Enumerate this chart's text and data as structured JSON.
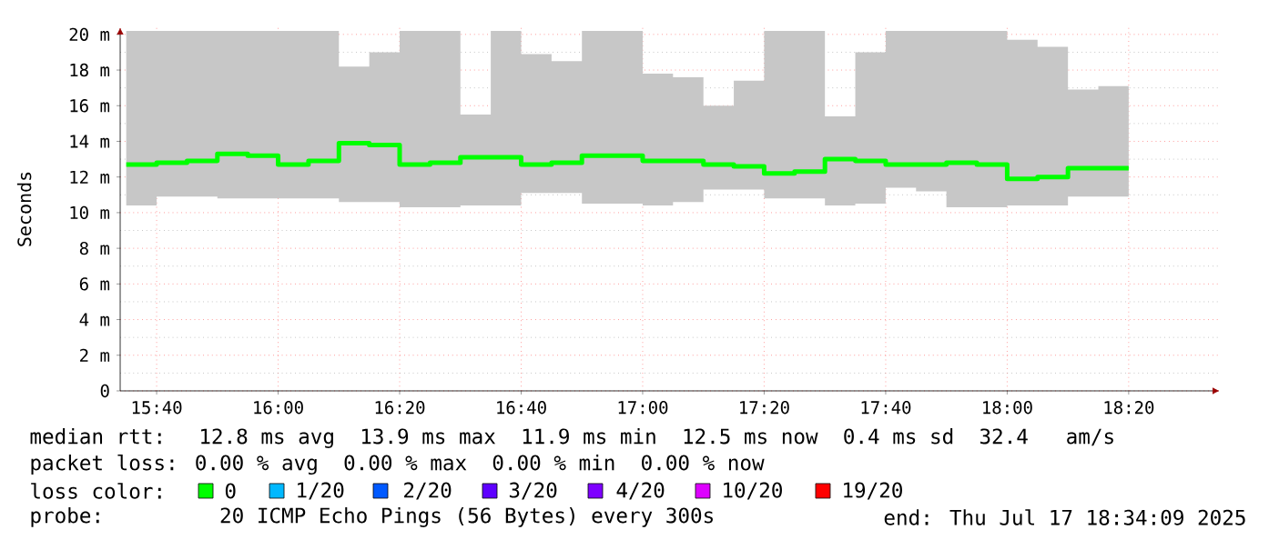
{
  "chart_data": {
    "type": "step",
    "ylabel": "Seconds",
    "x": [
      15.5833,
      15.6667,
      15.75,
      15.8333,
      15.9167,
      16.0,
      16.0833,
      16.1667,
      16.25,
      16.3333,
      16.4167,
      16.5,
      16.5833,
      16.6667,
      16.75,
      16.8333,
      16.9167,
      17.0,
      17.0833,
      17.1667,
      17.25,
      17.3333,
      17.4167,
      17.5,
      17.5833,
      17.6667,
      17.75,
      17.8333,
      17.9167,
      18.0,
      18.0833,
      18.1667,
      18.25,
      18.3333
    ],
    "series": [
      {
        "color": "#00ff00",
        "values": [
          12.7,
          12.8,
          12.9,
          13.3,
          13.2,
          12.7,
          12.9,
          13.9,
          13.8,
          12.7,
          12.8,
          13.1,
          13.1,
          12.7,
          12.8,
          13.2,
          13.2,
          12.9,
          12.9,
          12.7,
          12.6,
          12.2,
          12.3,
          13.0,
          12.9,
          12.7,
          12.7,
          12.8,
          12.7,
          11.9,
          12.0,
          12.5,
          12.5,
          12.5
        ],
        "lower": [
          10.4,
          10.9,
          10.9,
          10.8,
          10.8,
          10.8,
          10.8,
          10.6,
          10.6,
          10.3,
          10.3,
          10.4,
          10.4,
          11.1,
          11.1,
          10.5,
          10.5,
          10.4,
          10.6,
          11.3,
          11.3,
          10.8,
          10.8,
          10.4,
          10.5,
          11.4,
          11.2,
          10.3,
          10.3,
          10.4,
          10.4,
          10.9,
          10.9,
          10.6
        ],
        "upper": [
          20.2,
          20.2,
          20.2,
          20.2,
          20.2,
          20.2,
          20.2,
          18.2,
          19.0,
          20.2,
          20.2,
          15.5,
          20.2,
          18.9,
          18.5,
          20.2,
          20.2,
          17.8,
          17.6,
          16.0,
          17.4,
          20.2,
          20.2,
          15.4,
          19.0,
          20.2,
          20.2,
          20.2,
          20.2,
          19.7,
          19.3,
          16.9,
          17.1,
          17.7
        ]
      }
    ],
    "xlim": [
      15.5667,
      18.5833
    ],
    "xticks": [
      {
        "value": 15.6667,
        "label": "15:40"
      },
      {
        "value": 16.0,
        "label": "16:00"
      },
      {
        "value": 16.3333,
        "label": "16:20"
      },
      {
        "value": 16.6667,
        "label": "16:40"
      },
      {
        "value": 17.0,
        "label": "17:00"
      },
      {
        "value": 17.3333,
        "label": "17:20"
      },
      {
        "value": 17.6667,
        "label": "17:40"
      },
      {
        "value": 18.0,
        "label": "18:00"
      },
      {
        "value": 18.3333,
        "label": "18:20"
      }
    ],
    "ylim": [
      0,
      20.4
    ],
    "yticks": [
      0,
      {
        "value": 2,
        "label": "2 m"
      },
      {
        "value": 4,
        "label": "4 m"
      },
      {
        "value": 6,
        "label": "6 m"
      },
      {
        "value": 8,
        "label": "8 m"
      },
      {
        "value": 10,
        "label": "10 m"
      },
      {
        "value": 12,
        "label": "12 m"
      },
      {
        "value": 14,
        "label": "14 m"
      },
      {
        "value": 16,
        "label": "16 m"
      },
      {
        "value": 18,
        "label": "18 m"
      },
      {
        "value": 20,
        "label": "20 m"
      }
    ],
    "grid": true,
    "marker": "none",
    "line_style": "solid",
    "annotations": [
      "median rtt:  12.8 ms avg  13.9 ms max  11.9 ms min  12.5 ms now  0.4 ms sd  32.4   am/s",
      "packet loss: 0.00 % avg  0.00 % max  0.00 % min  0.00 % now",
      "loss color:",
      "0",
      "1/20",
      "2/20",
      "3/20",
      "4/20",
      "10/20",
      "19/20",
      "probe:       20 ICMP Echo Pings (56 Bytes) every 300s",
      "end: Thu Jul 17 18:34:09 2025"
    ]
  }
}
